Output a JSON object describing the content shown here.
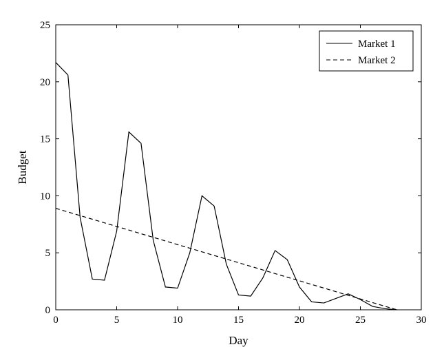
{
  "chart_data": {
    "type": "line",
    "title": "",
    "xlabel": "Day",
    "ylabel": "Budget",
    "xlim": [
      0,
      30
    ],
    "ylim": [
      0,
      25
    ],
    "xticks": [
      0,
      5,
      10,
      15,
      20,
      25,
      30
    ],
    "yticks": [
      0,
      5,
      10,
      15,
      20,
      25
    ],
    "grid": false,
    "legend_position": "top-right",
    "series": [
      {
        "name": "Market 1",
        "style": "solid",
        "color": "#000000",
        "x": [
          0,
          1,
          2,
          3,
          4,
          5,
          6,
          7,
          8,
          9,
          10,
          11,
          12,
          13,
          14,
          15,
          16,
          17,
          18,
          19,
          20,
          21,
          22,
          23,
          24,
          25,
          26,
          27,
          28
        ],
        "y": [
          21.7,
          20.6,
          8.1,
          2.7,
          2.6,
          6.9,
          15.6,
          14.6,
          6.1,
          2.0,
          1.9,
          5.0,
          10.0,
          9.1,
          4.0,
          1.3,
          1.2,
          2.8,
          5.2,
          4.4,
          2.0,
          0.7,
          0.6,
          1.0,
          1.4,
          0.9,
          0.3,
          0.1,
          0.0
        ]
      },
      {
        "name": "Market 2",
        "style": "dashed",
        "color": "#000000",
        "x": [
          0,
          28
        ],
        "y": [
          8.9,
          0.0
        ]
      }
    ]
  }
}
